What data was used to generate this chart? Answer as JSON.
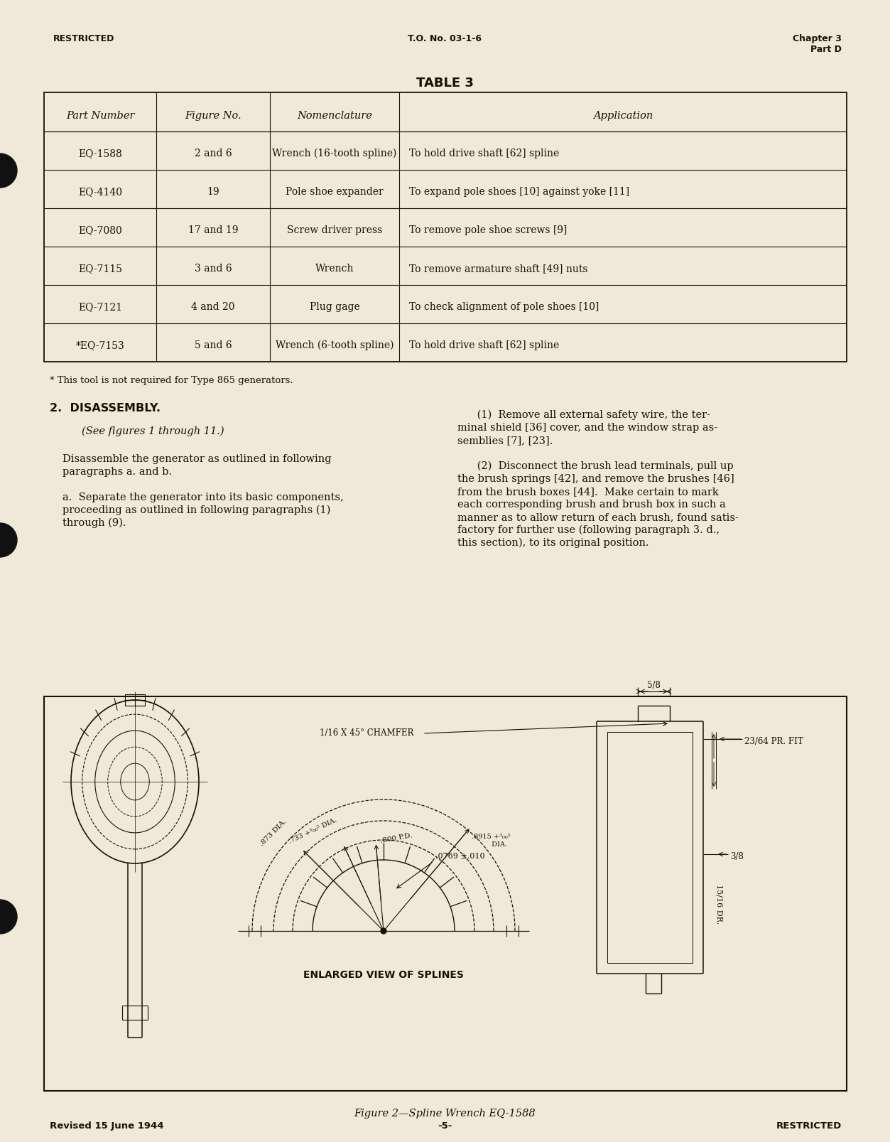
{
  "page_bg": "#f0e8d8",
  "header_left": "RESTRICTED",
  "header_center": "T.O. No. 03-1-6",
  "header_right_line1": "Chapter 3",
  "header_right_line2": "Part D",
  "table_title": "TABLE 3",
  "table_headers": [
    "Part Number",
    "Figure No.",
    "Nomenclature",
    "Application"
  ],
  "table_rows": [
    [
      "EQ-1588",
      "2 and 6",
      "Wrench (16-tooth spline)",
      "To hold drive shaft [62] spline"
    ],
    [
      "EQ-4140",
      "19",
      "Pole shoe expander",
      "To expand pole shoes [10] against yoke [11]"
    ],
    [
      "EQ-7080",
      "17 and 19",
      "Screw driver press",
      "To remove pole shoe screws [9]"
    ],
    [
      "EQ-7115",
      "3 and 6",
      "Wrench",
      "To remove armature shaft [49] nuts"
    ],
    [
      "EQ-7121",
      "4 and 20",
      "Plug gage",
      "To check alignment of pole shoes [10]"
    ],
    [
      "*EQ-7153",
      "5 and 6",
      "Wrench (6-tooth spline)",
      "To hold drive shaft [62] spline"
    ]
  ],
  "footnote": "* This tool is not required for Type 865 generators.",
  "section_title": "2.  DISASSEMBLY.",
  "para_italic": "(See figures 1 through 11.)",
  "para1_line1": "Disassemble the generator as outlined in following",
  "para1_line2": "paragraphs a. and b.",
  "para_a_line1": "a.  Separate the generator into its basic components,",
  "para_a_line2": "proceeding as outlined in following paragraphs (1)",
  "para_a_line3": "through (9).",
  "rc1_line1": "      (1)  Remove all external safety wire, the ter-",
  "rc1_line2": "minal shield [36] cover, and the window strap as-",
  "rc1_line3": "semblies [7], [23].",
  "rc2_line1": "      (2)  Disconnect the brush lead terminals, pull up",
  "rc2_line2": "the brush springs [42], and remove the brushes [46]",
  "rc2_line3": "from the brush boxes [44].  Make certain to mark",
  "rc2_line4": "each corresponding brush and brush box in such a",
  "rc2_line5": "manner as to allow return of each brush, found satis-",
  "rc2_line6": "factory for further use (following paragraph 3. d.,",
  "rc2_line7": "this section), to its original position.",
  "fig_label_chamfer": "1/16 X 45° CHAMFER",
  "fig_label_58": "5/8",
  "fig_label_2364": "23/64 PR. FIT",
  "fig_label_38": "3/8",
  "fig_label_1516": "15/16 DR.",
  "fig_label_0769": ".0769 ±.010",
  "fig_label_873": ".873 DIA.",
  "fig_label_733": ".733 +.005\n        DIA.",
  "fig_label_800": ".800 P.D.",
  "fig_label_8915": ".8915 +.005\n         DIA.",
  "fig_enlarged": "ENLARGED VIEW OF SPLINES",
  "figure_caption": "Figure 2—Spline Wrench EQ-1588",
  "footer_left": "Revised 15 June 1944",
  "footer_center": "-5-",
  "footer_right": "RESTRICTED",
  "text_color": "#1a1008",
  "line_color": "#1a1008"
}
